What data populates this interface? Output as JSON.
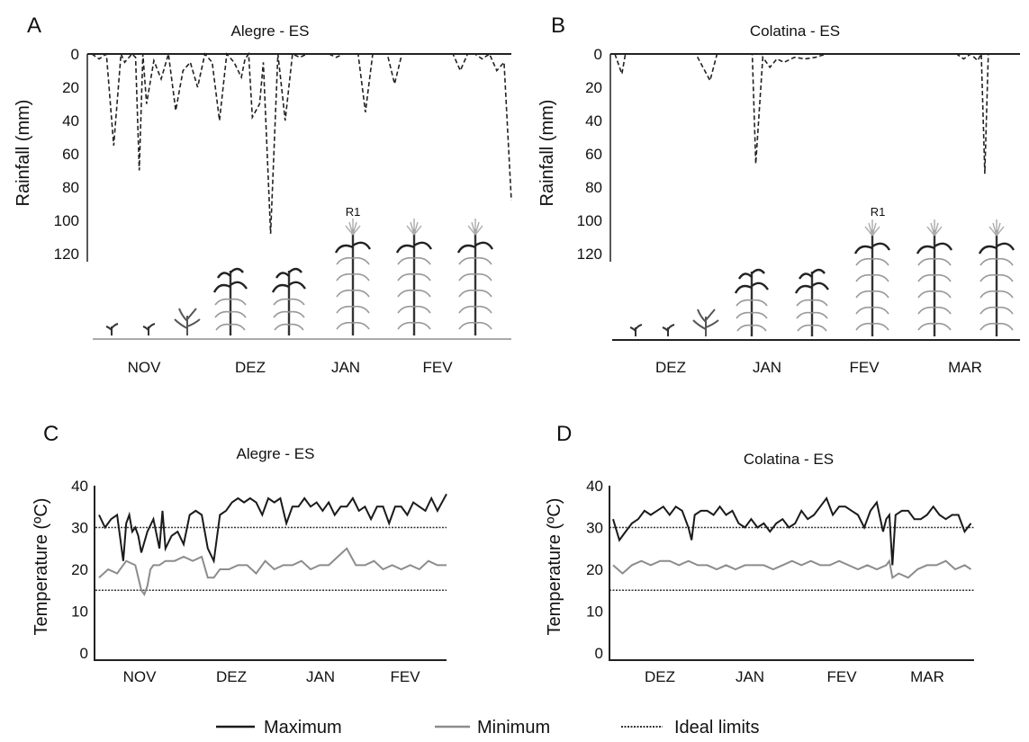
{
  "colors": {
    "maximum": "#1a1a1a",
    "minimum": "#8c8c8c",
    "ideal": "#333333",
    "rainfall": "#222222",
    "plant_dark": "#333333",
    "plant_light": "#9a9a9a"
  },
  "legend": {
    "maximum": "Maximum",
    "minimum": "Minimum",
    "ideal": "Ideal limits"
  },
  "chart_data": [
    {
      "panel": "A",
      "type": "line",
      "title": "Alegre - ES",
      "ylabel": "Rainfall (mm)",
      "y_inverted": true,
      "ylim": [
        0,
        120
      ],
      "yticks": [
        "0",
        "20",
        "40",
        "60",
        "80",
        "100",
        "120"
      ],
      "months": [
        "NOV",
        "DEZ",
        "JAN",
        "FEV"
      ],
      "stage_label": "R1",
      "series": [
        {
          "style": "dashed",
          "x": [
            0,
            2,
            4,
            6,
            8,
            9,
            11,
            12,
            13,
            14,
            15,
            17,
            19,
            21,
            23,
            25,
            27,
            29,
            31,
            33,
            35,
            37,
            39,
            41,
            42,
            43,
            44,
            46,
            47,
            49,
            51,
            53,
            55,
            57,
            59,
            61,
            62,
            63,
            65,
            67,
            69,
            71,
            73,
            75,
            77,
            79,
            81,
            83,
            85,
            87,
            89,
            91,
            93,
            95,
            96,
            97,
            99,
            101,
            103,
            105,
            107,
            109,
            111,
            113,
            115
          ],
          "values": [
            0,
            3,
            0,
            55,
            0,
            5,
            0,
            2,
            70,
            0,
            30,
            4,
            15,
            0,
            34,
            10,
            5,
            20,
            0,
            5,
            40,
            0,
            5,
            14,
            3,
            0,
            38,
            30,
            5,
            108,
            0,
            40,
            0,
            2,
            0,
            0,
            0,
            0,
            0,
            2,
            0,
            0,
            0,
            35,
            0,
            0,
            0,
            18,
            0,
            0,
            0,
            0,
            0,
            0,
            0,
            0,
            0,
            10,
            0,
            0,
            3,
            0,
            10,
            5,
            88
          ]
        }
      ]
    },
    {
      "panel": "B",
      "type": "line",
      "title": "Colatina - ES",
      "ylabel": "Rainfall (mm)",
      "y_inverted": true,
      "ylim": [
        0,
        120
      ],
      "yticks": [
        "0",
        "20",
        "40",
        "60",
        "80",
        "100",
        "120"
      ],
      "months": [
        "DEZ",
        "JAN",
        "FEV",
        "MAR"
      ],
      "stage_label": "R1",
      "series": [
        {
          "style": "dashed",
          "x": [
            0,
            2,
            3,
            5,
            8,
            10,
            13,
            16,
            19,
            21,
            23,
            25,
            27,
            29,
            31,
            33,
            35,
            37,
            39,
            40,
            42,
            44,
            46,
            48,
            51,
            54,
            57,
            60,
            63,
            66,
            69,
            72,
            75,
            78,
            81,
            84,
            87,
            90,
            93,
            95,
            97,
            99,
            101,
            103,
            104,
            105,
            106,
            107,
            108,
            109,
            112,
            115
          ],
          "values": [
            0,
            12,
            0,
            0,
            0,
            0,
            0,
            0,
            0,
            0,
            0,
            8,
            16,
            0,
            0,
            0,
            0,
            0,
            0,
            66,
            2,
            8,
            3,
            5,
            2,
            3,
            2,
            0,
            0,
            0,
            0,
            0,
            0,
            0,
            0,
            0,
            0,
            0,
            0,
            0,
            0,
            3,
            0,
            4,
            0,
            72,
            0,
            0,
            0,
            0,
            0,
            0
          ]
        }
      ]
    },
    {
      "panel": "C",
      "type": "line",
      "title": "Alegre - ES",
      "ylabel": "Temperature (ºC)",
      "ylim": [
        0,
        40
      ],
      "yticks": [
        "0",
        "10",
        "20",
        "30",
        "40"
      ],
      "months": [
        "NOV",
        "DEZ",
        "JAN",
        "FEV"
      ],
      "ideal_limits": [
        15,
        30
      ],
      "series": [
        {
          "name": "Maximum",
          "x": [
            0,
            2,
            4,
            6,
            8,
            9,
            10,
            11,
            12,
            13,
            14,
            16,
            18,
            20,
            21,
            22,
            24,
            26,
            28,
            30,
            32,
            34,
            36,
            38,
            40,
            42,
            44,
            46,
            48,
            50,
            52,
            54,
            56,
            58,
            60,
            62,
            64,
            66,
            68,
            70,
            72,
            74,
            76,
            78,
            80,
            82,
            84,
            86,
            88,
            90,
            92,
            94,
            96,
            98,
            100,
            102,
            104,
            106,
            108,
            110,
            112,
            115
          ],
          "values": [
            33,
            30,
            32,
            33,
            22,
            31,
            33,
            29,
            30,
            28,
            24,
            29,
            32,
            25,
            34,
            25,
            28,
            29,
            26,
            33,
            34,
            33,
            25,
            22,
            33,
            34,
            36,
            37,
            36,
            37,
            36,
            33,
            37,
            36,
            37,
            31,
            35,
            35,
            37,
            35,
            36,
            34,
            36,
            33,
            35,
            35,
            37,
            34,
            35,
            32,
            35,
            35,
            31,
            35,
            35,
            33,
            36,
            35,
            34,
            37,
            34,
            38
          ]
        },
        {
          "name": "Minimum",
          "x": [
            0,
            3,
            6,
            9,
            12,
            14,
            15,
            16,
            17,
            18,
            20,
            22,
            25,
            28,
            31,
            34,
            36,
            38,
            40,
            43,
            46,
            49,
            52,
            55,
            58,
            61,
            64,
            67,
            70,
            73,
            76,
            79,
            82,
            85,
            88,
            91,
            94,
            97,
            100,
            103,
            106,
            109,
            112,
            115
          ],
          "values": [
            18,
            20,
            19,
            22,
            21,
            15,
            14,
            16,
            20,
            21,
            21,
            22,
            22,
            23,
            22,
            23,
            18,
            18,
            20,
            20,
            21,
            21,
            19,
            22,
            20,
            21,
            21,
            22,
            20,
            21,
            21,
            23,
            25,
            21,
            21,
            22,
            20,
            21,
            20,
            21,
            20,
            22,
            21,
            21
          ]
        }
      ]
    },
    {
      "panel": "D",
      "type": "line",
      "title": "Colatina - ES",
      "ylabel": "Temperature (ºC)",
      "ylim": [
        0,
        40
      ],
      "yticks": [
        "0",
        "10",
        "20",
        "30",
        "40"
      ],
      "months": [
        "DEZ",
        "JAN",
        "FEV",
        "MAR"
      ],
      "ideal_limits": [
        15,
        30
      ],
      "series": [
        {
          "name": "Maximum",
          "x": [
            0,
            2,
            4,
            6,
            8,
            10,
            12,
            14,
            16,
            18,
            20,
            22,
            24,
            25,
            26,
            28,
            30,
            32,
            34,
            36,
            38,
            40,
            42,
            44,
            46,
            48,
            50,
            52,
            54,
            56,
            58,
            60,
            62,
            64,
            66,
            68,
            70,
            72,
            74,
            76,
            78,
            80,
            82,
            84,
            86,
            87,
            88,
            89,
            90,
            92,
            94,
            96,
            98,
            100,
            102,
            104,
            106,
            108,
            110,
            112,
            114
          ],
          "values": [
            32,
            27,
            29,
            31,
            32,
            34,
            33,
            34,
            35,
            33,
            35,
            34,
            30,
            27,
            33,
            34,
            34,
            33,
            35,
            33,
            34,
            31,
            30,
            32,
            30,
            31,
            29,
            31,
            32,
            30,
            31,
            34,
            32,
            33,
            35,
            37,
            33,
            35,
            35,
            34,
            33,
            30,
            34,
            36,
            29,
            32,
            33,
            21,
            33,
            34,
            34,
            32,
            32,
            33,
            35,
            33,
            32,
            33,
            33,
            29,
            31
          ]
        },
        {
          "name": "Minimum",
          "x": [
            0,
            3,
            6,
            9,
            12,
            15,
            18,
            21,
            24,
            27,
            30,
            33,
            36,
            39,
            42,
            45,
            48,
            51,
            54,
            57,
            60,
            63,
            66,
            69,
            72,
            75,
            78,
            81,
            84,
            87,
            88,
            89,
            91,
            94,
            97,
            100,
            103,
            106,
            109,
            112,
            114
          ],
          "values": [
            21,
            19,
            21,
            22,
            21,
            22,
            22,
            21,
            22,
            21,
            21,
            20,
            21,
            20,
            21,
            21,
            21,
            20,
            21,
            22,
            21,
            22,
            21,
            21,
            22,
            21,
            20,
            21,
            20,
            21,
            22,
            18,
            19,
            18,
            20,
            21,
            21,
            22,
            20,
            21,
            20
          ]
        }
      ]
    }
  ]
}
